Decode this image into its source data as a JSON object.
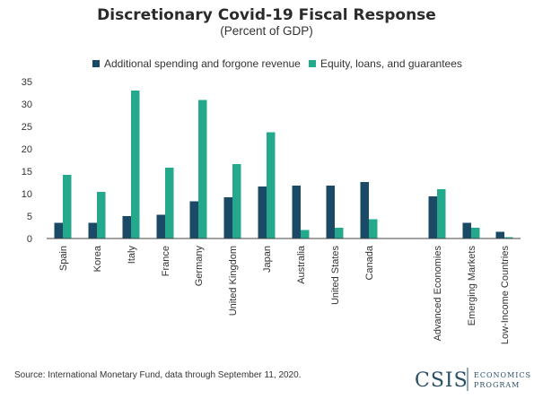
{
  "chart_data": {
    "type": "bar",
    "title": "Discretionary Covid-19 Fiscal Response",
    "subtitle": "(Percent of GDP)",
    "categories": [
      "Spain",
      "Korea",
      "Italy",
      "France",
      "Germany",
      "United Kingdom",
      "Japan",
      "Australia",
      "United States",
      "Canada",
      "Advanced Economies",
      "Emerging Markets",
      "Low-Income Countries"
    ],
    "series": [
      {
        "name": "Additional spending and forgone revenue",
        "color": "#1b4a66",
        "values": [
          3.5,
          3.5,
          5.0,
          5.3,
          8.3,
          9.2,
          11.6,
          11.8,
          11.8,
          12.6,
          9.4,
          3.5,
          1.5
        ]
      },
      {
        "name": "Equity, loans, and guarantees",
        "color": "#24a98c",
        "values": [
          14.2,
          10.4,
          33.0,
          15.8,
          30.9,
          16.6,
          23.7,
          1.9,
          2.4,
          4.3,
          11.0,
          2.4,
          0.3
        ]
      }
    ],
    "ylim": [
      0,
      35
    ],
    "yticks": [
      0,
      5,
      10,
      15,
      20,
      25,
      30,
      35
    ],
    "grid": false,
    "legend": "top",
    "xlabel": "",
    "ylabel": ""
  },
  "source": "Source: International Monetary Fund, data through September 11, 2020.",
  "logo": {
    "name": "CSIS",
    "line1": "ECONOMICS",
    "line2": "PROGRAM"
  }
}
